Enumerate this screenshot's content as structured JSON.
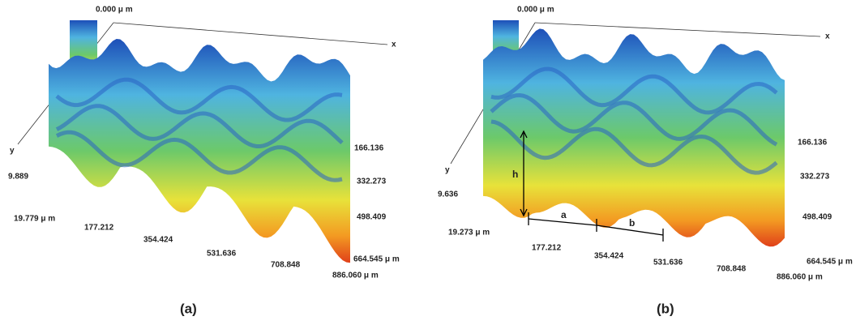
{
  "panels": [
    {
      "caption": "(a)",
      "origin_label": "0.000 μ m",
      "x_axis": "x",
      "y_axis": "y",
      "y_ticks": [
        "9.889",
        "19.779 μ m"
      ],
      "x_ticks": [
        "177.212",
        "354.424",
        "531.636",
        "708.848",
        "886.060 μ m"
      ],
      "depth_ticks": [
        "166.136",
        "332.273",
        "498.409",
        "664.545 μ m"
      ]
    },
    {
      "caption": "(b)",
      "origin_label": "0.000 μ m",
      "x_axis": "x",
      "y_axis": "y",
      "y_ticks": [
        "9.636",
        "19.273 μ m"
      ],
      "x_ticks": [
        "177.212",
        "354.424",
        "531.636",
        "708.848",
        "886.060 μ m"
      ],
      "depth_ticks": [
        "166.136",
        "332.273",
        "498.409",
        "664.545 μ m"
      ],
      "annotations": [
        "h",
        "a",
        "b"
      ]
    }
  ]
}
